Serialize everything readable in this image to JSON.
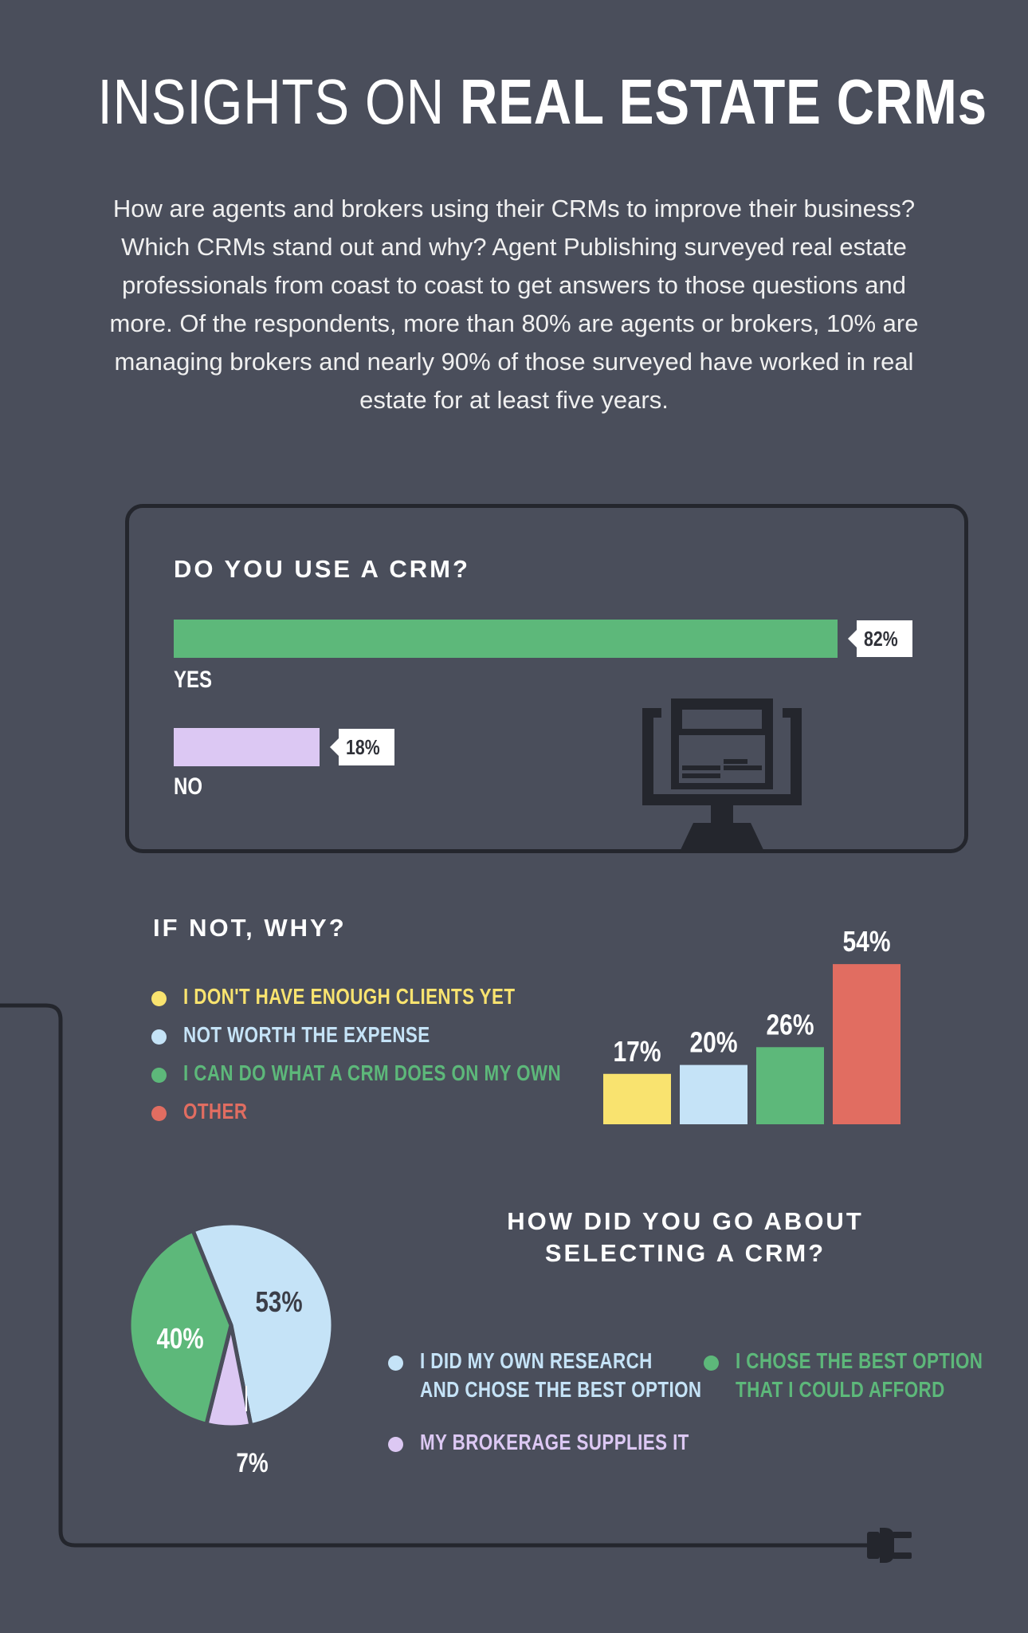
{
  "title": {
    "light": "INSIGHTS ON ",
    "bold": "REAL ESTATE CRMs"
  },
  "intro": "How are agents and brokers using their CRMs to improve their business? Which CRMs stand out and why? Agent Publishing surveyed real estate professionals from coast to coast to get answers to those questions and more. Of the respondents, more than 80% are agents or brokers, 10% are managing brokers and nearly 90% of those surveyed have worked in real estate for at least five years.",
  "colors": {
    "background": "#4a4e5b",
    "green": "#5db87a",
    "lavender": "#dcc8f3",
    "yellow": "#f9e36f",
    "light_blue": "#c5e3f7",
    "coral": "#e16d61",
    "dark": "#24262d"
  },
  "icons": [
    "computer-monitor-icon",
    "power-plug-icon"
  ],
  "chart_data": [
    {
      "type": "bar",
      "orientation": "horizontal",
      "title": "DO YOU USE A CRM?",
      "categories": [
        "YES",
        "NO"
      ],
      "values": [
        82,
        18
      ],
      "value_labels": [
        "82%",
        "18%"
      ],
      "colors": [
        "#5db87a",
        "#dcc8f3"
      ],
      "unit": "%"
    },
    {
      "type": "bar",
      "title": "IF NOT, WHY?",
      "categories": [
        "I DON'T HAVE ENOUGH CLIENTS YET",
        "NOT WORTH THE EXPENSE",
        "I CAN DO WHAT A CRM DOES ON MY OWN",
        "OTHER"
      ],
      "values": [
        17,
        20,
        26,
        54
      ],
      "value_labels": [
        "17%",
        "20%",
        "26%",
        "54%"
      ],
      "colors": [
        "#f9e36f",
        "#c5e3f7",
        "#5db87a",
        "#e16d61"
      ],
      "legend": "left",
      "unit": "%"
    },
    {
      "type": "pie",
      "title": "HOW DID YOU GO ABOUT SELECTING A CRM?",
      "categories": [
        "I DID MY OWN RESEARCH AND CHOSE THE BEST OPTION",
        "MY BROKERAGE SUPPLIES IT",
        "I CHOSE THE BEST OPTION THAT I COULD AFFORD"
      ],
      "values": [
        53,
        7,
        40
      ],
      "value_labels": [
        "53%",
        "7%",
        "40%"
      ],
      "colors": [
        "#c5e3f7",
        "#dcc8f3",
        "#5db87a"
      ],
      "legend": "right",
      "unit": "%"
    }
  ],
  "crm_use": {
    "title": "DO YOU USE A CRM?",
    "yes_label": "YES",
    "yes_pct": "82%",
    "no_label": "NO",
    "no_pct": "18%"
  },
  "why_not": {
    "title": "IF NOT, WHY?",
    "legend": [
      "I DON'T HAVE ENOUGH CLIENTS YET",
      "NOT WORTH THE EXPENSE",
      "I CAN DO WHAT A CRM DOES ON MY OWN",
      "OTHER"
    ],
    "pcts": [
      "17%",
      "20%",
      "26%",
      "54%"
    ]
  },
  "selecting": {
    "title_line1": "HOW DID YOU GO ABOUT",
    "title_line2": "SELECTING A CRM?",
    "legend_research_line1": "I DID MY OWN RESEARCH",
    "legend_research_line2": "AND CHOSE THE BEST OPTION",
    "legend_afford_line1": "I CHOSE THE BEST OPTION",
    "legend_afford_line2": "THAT I COULD AFFORD",
    "legend_brokerage": "MY BROKERAGE SUPPLIES IT",
    "pct_research": "53%",
    "pct_afford": "40%",
    "pct_brokerage": "7%"
  }
}
